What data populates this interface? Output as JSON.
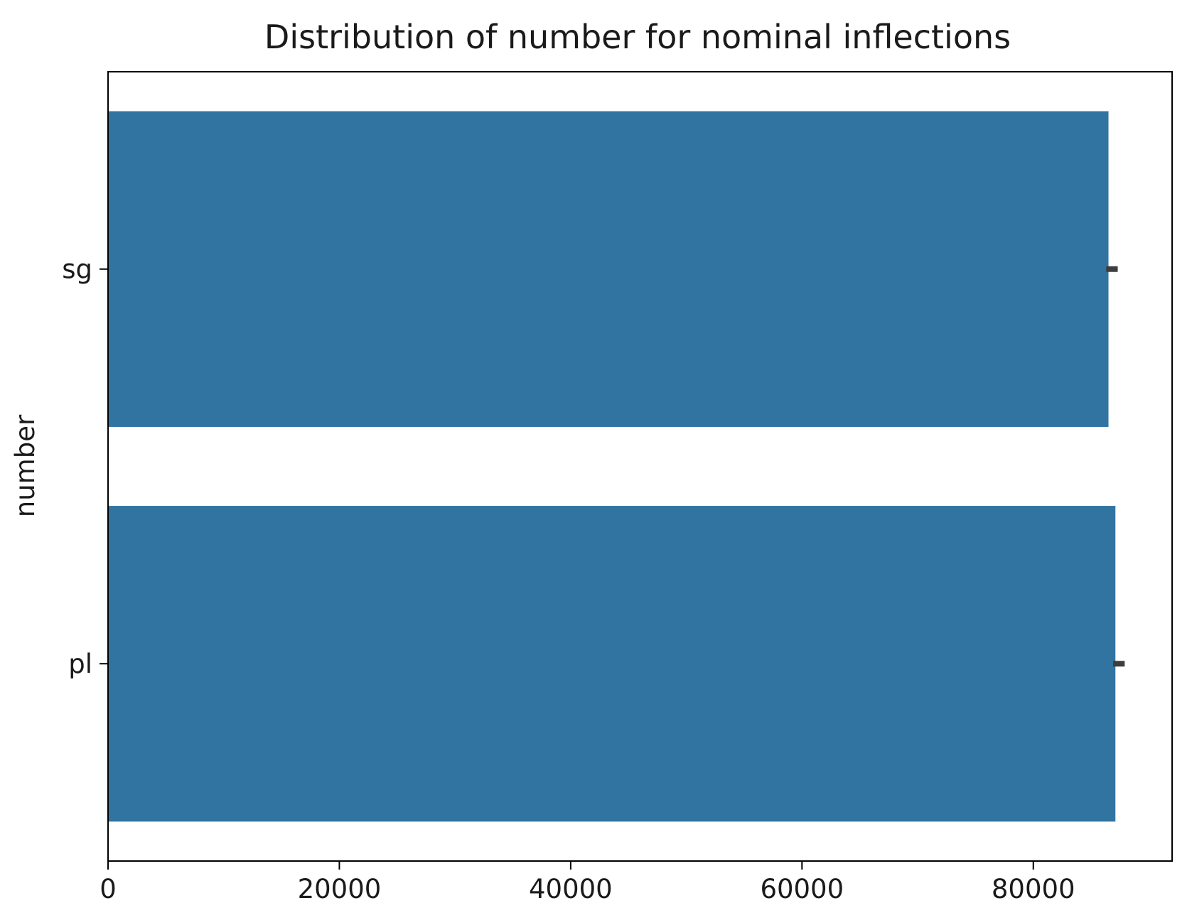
{
  "chart_data": {
    "type": "bar",
    "orientation": "horizontal",
    "title": "Distribution of number for nominal inflections",
    "xlabel": "",
    "ylabel": "number",
    "categories": [
      "sg",
      "pl"
    ],
    "values": [
      86500,
      87100
    ],
    "error_bars": [
      {
        "low": 86300,
        "high": 87300
      },
      {
        "low": 86900,
        "high": 87900
      }
    ],
    "xlim": [
      0,
      92000
    ],
    "xticks": [
      0,
      20000,
      40000,
      60000,
      80000
    ],
    "grid": false,
    "legend": "none",
    "colors": {
      "bar": "#3274a1",
      "error_bar": "#3d3d3d",
      "axes": "#000000"
    }
  }
}
